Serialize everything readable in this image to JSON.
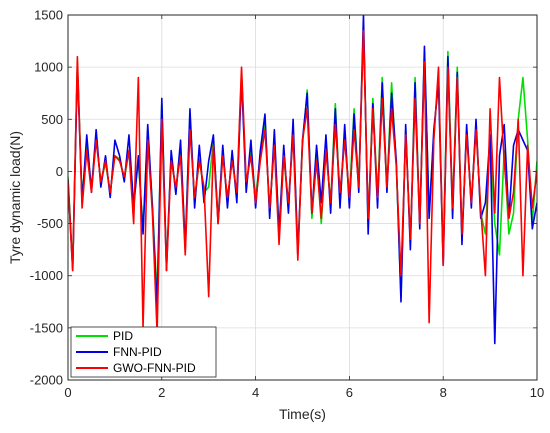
{
  "chart_data": {
    "type": "line",
    "title": "",
    "xlabel": "Time(s)",
    "ylabel": "Tyre dynamic load(N)",
    "xlim": [
      0,
      10
    ],
    "ylim": [
      -2000,
      1500
    ],
    "xticks": [
      0,
      2,
      4,
      6,
      8,
      10
    ],
    "yticks": [
      -2000,
      -1500,
      -1000,
      -500,
      0,
      500,
      1000,
      1500
    ],
    "grid": true,
    "legend_position": "bottom-left",
    "x": [
      0,
      0.1,
      0.2,
      0.3,
      0.4,
      0.5,
      0.6,
      0.7,
      0.8,
      0.9,
      1.0,
      1.1,
      1.2,
      1.3,
      1.4,
      1.5,
      1.6,
      1.7,
      1.8,
      1.9,
      2.0,
      2.1,
      2.2,
      2.3,
      2.4,
      2.5,
      2.6,
      2.7,
      2.8,
      2.9,
      3.0,
      3.1,
      3.2,
      3.3,
      3.4,
      3.5,
      3.6,
      3.7,
      3.8,
      3.9,
      4.0,
      4.1,
      4.2,
      4.3,
      4.4,
      4.5,
      4.6,
      4.7,
      4.8,
      4.9,
      5.0,
      5.1,
      5.2,
      5.3,
      5.4,
      5.5,
      5.6,
      5.7,
      5.8,
      5.9,
      6.0,
      6.1,
      6.2,
      6.3,
      6.4,
      6.5,
      6.6,
      6.7,
      6.8,
      6.9,
      7.0,
      7.1,
      7.2,
      7.3,
      7.4,
      7.5,
      7.6,
      7.7,
      7.8,
      7.9,
      8.0,
      8.1,
      8.2,
      8.3,
      8.4,
      8.5,
      8.6,
      8.7,
      8.8,
      8.9,
      9.0,
      9.1,
      9.2,
      9.3,
      9.4,
      9.5,
      9.6,
      9.7,
      9.8,
      9.9,
      10.0
    ],
    "series": [
      {
        "name": "PID",
        "color": "#00e000",
        "values": [
          -50,
          -900,
          1050,
          -250,
          250,
          -150,
          330,
          -100,
          80,
          -200,
          150,
          120,
          -80,
          200,
          -300,
          100,
          -550,
          400,
          -320,
          -1200,
          650,
          -900,
          150,
          -180,
          250,
          -700,
          550,
          -300,
          120,
          -200,
          -150,
          300,
          -450,
          200,
          -300,
          150,
          -250,
          950,
          -150,
          200,
          -250,
          150,
          500,
          -400,
          300,
          -550,
          150,
          -350,
          400,
          -750,
          250,
          780,
          -450,
          150,
          -500,
          200,
          -300,
          650,
          -300,
          350,
          -250,
          600,
          -150,
          1400,
          -500,
          700,
          -250,
          900,
          -150,
          850,
          50,
          -1200,
          400,
          -700,
          900,
          -500,
          1150,
          -400,
          350,
          900,
          -850,
          1150,
          -350,
          1000,
          -650,
          400,
          -300,
          450,
          -400,
          -600,
          300,
          -500,
          -800,
          200,
          -600,
          -400,
          500,
          900,
          300,
          -500,
          100
        ]
      },
      {
        "name": "FNN-PID",
        "color": "#0000e6",
        "values": [
          -80,
          -950,
          1000,
          -300,
          350,
          -200,
          400,
          -150,
          150,
          -250,
          300,
          150,
          -100,
          350,
          -350,
          150,
          -600,
          450,
          -350,
          -1300,
          700,
          -950,
          200,
          -220,
          300,
          -750,
          600,
          -350,
          250,
          -300,
          100,
          350,
          -500,
          250,
          -350,
          200,
          -300,
          900,
          -200,
          300,
          -350,
          200,
          550,
          -450,
          400,
          -600,
          250,
          -400,
          500,
          -800,
          300,
          750,
          -400,
          250,
          -300,
          350,
          -400,
          600,
          -350,
          450,
          -350,
          550,
          -200,
          1500,
          -600,
          650,
          -350,
          850,
          -200,
          750,
          100,
          -1250,
          450,
          -750,
          850,
          -550,
          1200,
          -450,
          400,
          850,
          -900,
          1100,
          -450,
          950,
          -700,
          450,
          -350,
          500,
          -450,
          -300,
          350,
          -1650,
          150,
          450,
          -450,
          250,
          400,
          300,
          200,
          -550,
          -300
        ]
      },
      {
        "name": "GWO-FNN-PID",
        "color": "#ff0000",
        "values": [
          -100,
          -950,
          1100,
          -350,
          200,
          -200,
          300,
          -100,
          100,
          -200,
          150,
          100,
          -50,
          200,
          -500,
          900,
          -1500,
          300,
          -400,
          -1550,
          500,
          -950,
          100,
          -150,
          150,
          -800,
          400,
          -250,
          100,
          -150,
          -1200,
          250,
          -500,
          150,
          -250,
          100,
          -200,
          1000,
          -100,
          150,
          -300,
          100,
          400,
          -350,
          250,
          -700,
          150,
          -300,
          350,
          -850,
          300,
          600,
          -400,
          100,
          -450,
          200,
          -300,
          450,
          -200,
          300,
          -250,
          400,
          -150,
          1350,
          -450,
          600,
          -250,
          700,
          -150,
          600,
          50,
          -1000,
          350,
          -650,
          700,
          -500,
          1050,
          -1450,
          300,
          1000,
          -900,
          1000,
          -350,
          900,
          -600,
          350,
          -300,
          400,
          -350,
          -1000,
          600,
          -400,
          900,
          100,
          -450,
          -200,
          500,
          -1000,
          250,
          -350,
          0
        ]
      }
    ]
  }
}
